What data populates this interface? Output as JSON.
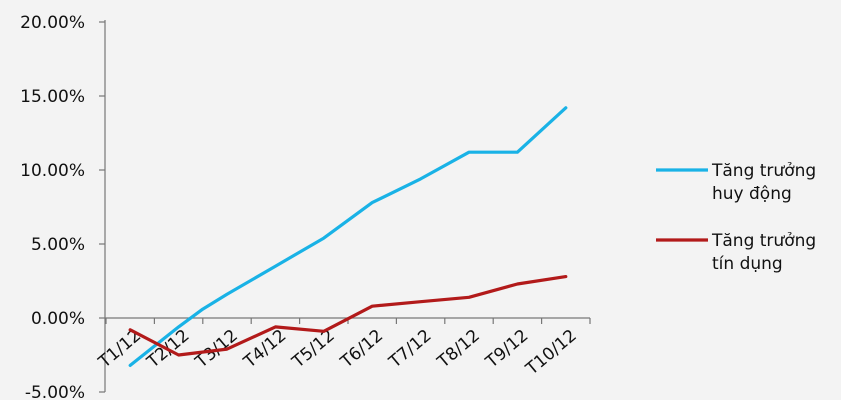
{
  "chart_data": {
    "type": "line",
    "title": "",
    "xlabel": "",
    "ylabel": "",
    "categories": [
      "T1/12",
      "T2/12",
      "T3/12",
      "T4/12",
      "T5/12",
      "T6/12",
      "T7/12",
      "T8/12",
      "T9/12",
      "T10/12"
    ],
    "y_tick_labels": [
      "-5.00%",
      "0.00%",
      "5.00%",
      "10.00%",
      "15.00%",
      "20.00%"
    ],
    "ylim": [
      -5,
      20
    ],
    "grid": false,
    "legend_position": "right",
    "series": [
      {
        "name_lines": [
          "Tăng trưởng",
          "huy động"
        ],
        "color": "#19b2e6",
        "x": [
          0.0,
          1.0,
          1.5,
          2.0,
          3.0,
          4.0,
          5.0,
          6.0,
          7.0,
          8.0,
          9.0
        ],
        "values": [
          -3.2,
          -0.6,
          0.6,
          1.6,
          3.5,
          5.4,
          7.8,
          9.4,
          11.2,
          11.2,
          14.2
        ]
      },
      {
        "name_lines": [
          "Tăng trưởng",
          "tín dụng"
        ],
        "color": "#b21a1a",
        "x": [
          0,
          1,
          2,
          3,
          4,
          5,
          6,
          7,
          8,
          9
        ],
        "values": [
          -0.8,
          -2.5,
          -2.1,
          -0.6,
          -0.9,
          0.8,
          1.1,
          1.4,
          2.3,
          2.8
        ]
      }
    ]
  }
}
